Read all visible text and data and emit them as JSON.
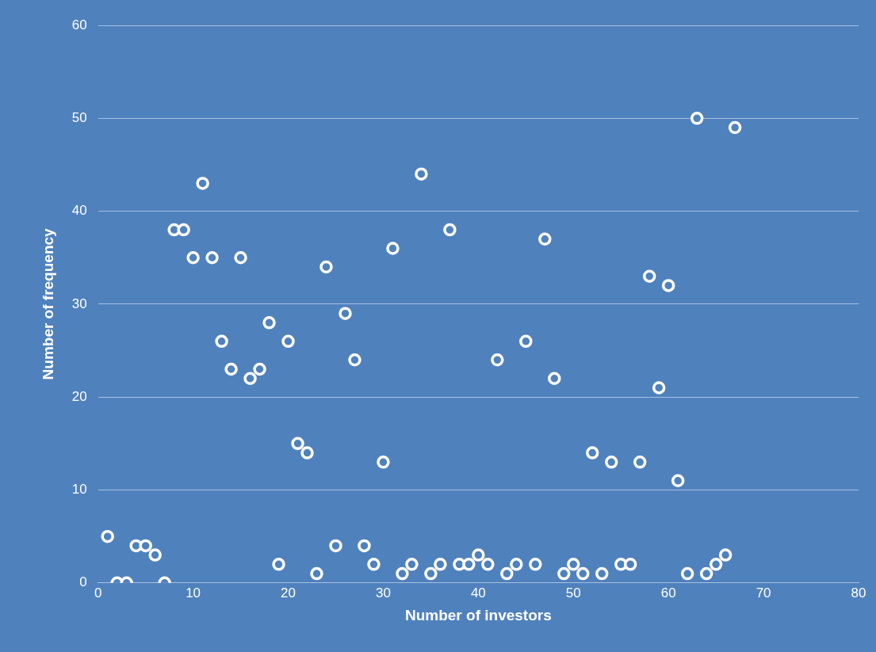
{
  "chart_data": {
    "type": "scatter",
    "xlabel": "Number of investors",
    "ylabel": "Number of frequency",
    "x": [
      1,
      2,
      3,
      4,
      5,
      6,
      7,
      8,
      9,
      10,
      11,
      12,
      13,
      14,
      15,
      16,
      17,
      18,
      19,
      20,
      21,
      22,
      23,
      24,
      25,
      26,
      27,
      28,
      29,
      30,
      31,
      32,
      33,
      34,
      35,
      36,
      37,
      38,
      39,
      40,
      41,
      42,
      43,
      44,
      45,
      46,
      47,
      48,
      49,
      50,
      51,
      52,
      53,
      54,
      55,
      56,
      57,
      58,
      59,
      60,
      61,
      62,
      63,
      64,
      65,
      66,
      67
    ],
    "series": [
      {
        "color": "#ffffff",
        "values": [
          5,
          0,
          0,
          4,
          4,
          3,
          0,
          38,
          38,
          35,
          43,
          35,
          26,
          23,
          35,
          22,
          23,
          28,
          2,
          26,
          15,
          14,
          1,
          34,
          4,
          29,
          24,
          4,
          2,
          13,
          36,
          1,
          2,
          44,
          1,
          2,
          38,
          2,
          2,
          3,
          2,
          24,
          1,
          2,
          26,
          2,
          37,
          22,
          1,
          2,
          1,
          14,
          1,
          13,
          2,
          2,
          13,
          33,
          21,
          32,
          11,
          1,
          50,
          1,
          2,
          3,
          49
        ]
      }
    ],
    "xlim": [
      0,
      80
    ],
    "xticks": [
      0,
      10,
      20,
      30,
      40,
      50,
      60,
      70,
      80
    ],
    "ylim": [
      0,
      60
    ],
    "yticks": [
      0,
      10,
      20,
      30,
      40,
      50,
      60
    ],
    "grid": "y",
    "legend": false,
    "marker": "circle"
  }
}
